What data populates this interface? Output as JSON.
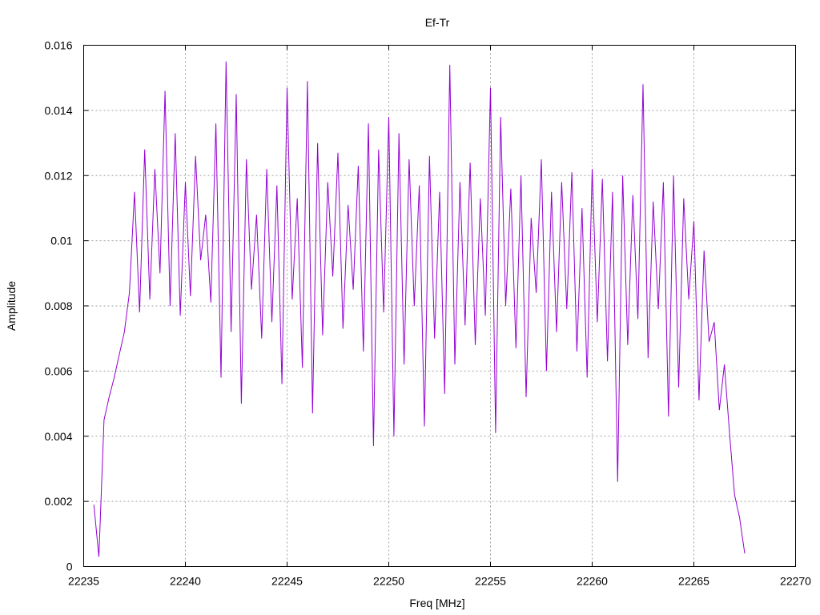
{
  "chart_data": {
    "type": "line",
    "title": "Ef-Tr",
    "xlabel": "Freq [MHz]",
    "ylabel": "Amplitude",
    "xlim": [
      22235,
      22270
    ],
    "ylim": [
      0,
      0.016
    ],
    "xticks": [
      "22235",
      "22240",
      "22245",
      "22250",
      "22255",
      "22260",
      "22265",
      "22270"
    ],
    "yticks": [
      "0",
      "0.002",
      "0.004",
      "0.006",
      "0.008",
      "0.01",
      "0.012",
      "0.014",
      "0.016"
    ],
    "grid": true,
    "series": [
      {
        "color": "#9400d3",
        "x": [
          22235.5,
          22235.75,
          22236.0,
          22236.25,
          22236.5,
          22236.75,
          22237.0,
          22237.25,
          22237.5,
          22237.75,
          22238.0,
          22238.25,
          22238.5,
          22238.75,
          22239.0,
          22239.25,
          22239.5,
          22239.75,
          22240.0,
          22240.25,
          22240.5,
          22240.75,
          22241.0,
          22241.25,
          22241.5,
          22241.75,
          22242.0,
          22242.25,
          22242.5,
          22242.75,
          22243.0,
          22243.25,
          22243.5,
          22243.75,
          22244.0,
          22244.25,
          22244.5,
          22244.75,
          22245.0,
          22245.25,
          22245.5,
          22245.75,
          22246.0,
          22246.25,
          22246.5,
          22246.75,
          22247.0,
          22247.25,
          22247.5,
          22247.75,
          22248.0,
          22248.25,
          22248.5,
          22248.75,
          22249.0,
          22249.25,
          22249.5,
          22249.75,
          22250.0,
          22250.25,
          22250.5,
          22250.75,
          22251.0,
          22251.25,
          22251.5,
          22251.75,
          22252.0,
          22252.25,
          22252.5,
          22252.75,
          22253.0,
          22253.25,
          22253.5,
          22253.75,
          22254.0,
          22254.25,
          22254.5,
          22254.75,
          22255.0,
          22255.25,
          22255.5,
          22255.75,
          22256.0,
          22256.25,
          22256.5,
          22256.75,
          22257.0,
          22257.25,
          22257.5,
          22257.75,
          22258.0,
          22258.25,
          22258.5,
          22258.75,
          22259.0,
          22259.25,
          22259.5,
          22259.75,
          22260.0,
          22260.25,
          22260.5,
          22260.75,
          22261.0,
          22261.25,
          22261.5,
          22261.75,
          22262.0,
          22262.25,
          22262.5,
          22262.75,
          22263.0,
          22263.25,
          22263.5,
          22263.75,
          22264.0,
          22264.25,
          22264.5,
          22264.75,
          22265.0,
          22265.25,
          22265.5,
          22265.75,
          22266.0,
          22266.25,
          22266.5,
          22266.75,
          22267.0,
          22267.25,
          22267.5
        ],
        "y": [
          0.0019,
          0.0003,
          0.0045,
          0.0052,
          0.0058,
          0.0065,
          0.0072,
          0.0084,
          0.0115,
          0.0078,
          0.0128,
          0.0082,
          0.0122,
          0.009,
          0.0146,
          0.008,
          0.0133,
          0.0077,
          0.0118,
          0.0083,
          0.0126,
          0.0094,
          0.0108,
          0.0081,
          0.0136,
          0.0058,
          0.0155,
          0.0072,
          0.0145,
          0.005,
          0.0125,
          0.0085,
          0.0108,
          0.007,
          0.0122,
          0.0075,
          0.0117,
          0.0056,
          0.0147,
          0.0082,
          0.0113,
          0.0061,
          0.0149,
          0.0047,
          0.013,
          0.0071,
          0.0118,
          0.0089,
          0.0127,
          0.0073,
          0.0111,
          0.0085,
          0.0123,
          0.0066,
          0.0136,
          0.0037,
          0.0128,
          0.0078,
          0.0138,
          0.004,
          0.0133,
          0.0062,
          0.0125,
          0.008,
          0.0117,
          0.0043,
          0.0126,
          0.007,
          0.0115,
          0.0053,
          0.0154,
          0.0062,
          0.0118,
          0.0074,
          0.0124,
          0.0068,
          0.0113,
          0.0077,
          0.0147,
          0.0041,
          0.0138,
          0.008,
          0.0116,
          0.0067,
          0.012,
          0.0052,
          0.0107,
          0.0084,
          0.0125,
          0.006,
          0.0115,
          0.0072,
          0.0118,
          0.0079,
          0.0121,
          0.0066,
          0.011,
          0.0058,
          0.0122,
          0.0075,
          0.0119,
          0.0063,
          0.0115,
          0.0026,
          0.012,
          0.0068,
          0.0114,
          0.0076,
          0.0148,
          0.0064,
          0.0112,
          0.0079,
          0.0118,
          0.0046,
          0.012,
          0.0055,
          0.0113,
          0.0082,
          0.0106,
          0.0051,
          0.0097,
          0.0069,
          0.0075,
          0.0048,
          0.0062,
          0.0041,
          0.0022,
          0.0015,
          0.0004
        ]
      }
    ]
  }
}
